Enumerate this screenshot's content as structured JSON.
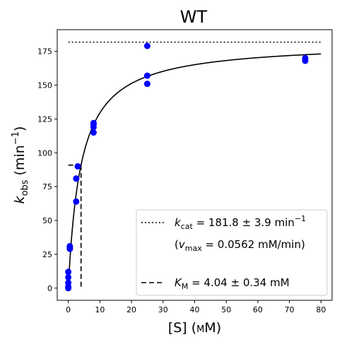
{
  "chart_data": {
    "type": "scatter",
    "title": "WT",
    "xlabel": {
      "main": "[S] (",
      "unit": "mM",
      "close": ")"
    },
    "ylabel": {
      "base": "k",
      "sub": "obs",
      "mid": " (min",
      "sup": "−1",
      "close": ")"
    },
    "xlim": [
      -3.5,
      83.5
    ],
    "ylim": [
      -9,
      191
    ],
    "xticks": [
      0,
      10,
      20,
      30,
      40,
      50,
      60,
      70,
      80
    ],
    "yticks": [
      0,
      25,
      50,
      75,
      100,
      125,
      150,
      175
    ],
    "grid": false,
    "legend_position": "lower-right",
    "colors": {
      "points": "#0000ff",
      "lines": "#000000"
    },
    "series": [
      {
        "kind": "points",
        "x": [
          0,
          0,
          0,
          0,
          0,
          0.5,
          0.5,
          0.5,
          2.5,
          2.5,
          3,
          8,
          8,
          8,
          8,
          25,
          25,
          25,
          75,
          75
        ],
        "y": [
          0,
          1,
          4,
          8,
          12,
          29,
          30,
          31,
          64,
          81,
          90,
          115,
          119,
          121,
          122,
          151,
          157,
          179,
          168,
          170
        ]
      },
      {
        "kind": "fit",
        "model": "michaelis-menten",
        "kcat": 181.8,
        "KM": 4.04,
        "x_range": [
          0,
          80
        ]
      },
      {
        "kind": "kcat-line",
        "y": 181.8,
        "x_range": [
          0,
          80
        ]
      },
      {
        "kind": "KM-line",
        "x": 4.04,
        "half_y": 90.9,
        "x_from": 0
      }
    ],
    "legend": [
      {
        "style": "dotted",
        "base": "k",
        "sub": "cat",
        "text": " = 181.8 ± 3.9 min",
        "sup": "−1"
      },
      {
        "style": "none",
        "open": "(",
        "base": "v",
        "sub": "max",
        "text": " = 0.0562 mM/min)"
      },
      {
        "style": "dashed",
        "base": "K",
        "sub": "M",
        "text": " = 4.04 ± 0.34 mM"
      }
    ]
  }
}
